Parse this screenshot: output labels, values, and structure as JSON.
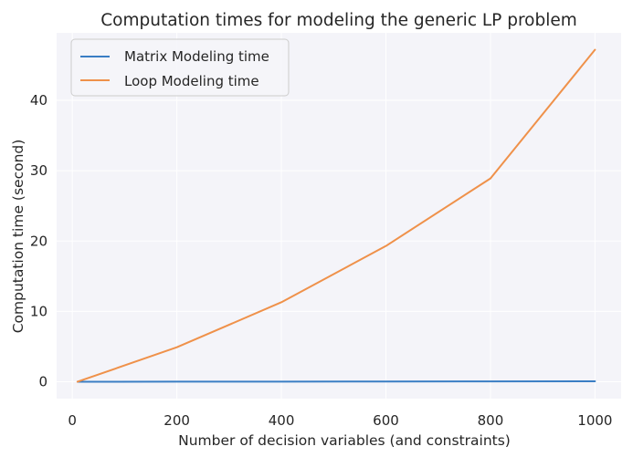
{
  "chart_data": {
    "type": "line",
    "title": "Computation times for modeling the generic LP problem",
    "xlabel": "Number of decision variables (and constraints)",
    "ylabel": "Computation time (second)",
    "xlim": [
      -30,
      1050
    ],
    "ylim": [
      -2.4,
      49.6
    ],
    "x_ticks": [
      0,
      200,
      400,
      600,
      800,
      1000
    ],
    "y_ticks": [
      0,
      10,
      20,
      30,
      40
    ],
    "grid": true,
    "legend_position": "top-left",
    "background": "#f4f4f9",
    "x": [
      10,
      200,
      400,
      600,
      800,
      1000
    ],
    "series": [
      {
        "name": "Matrix Modeling time",
        "color": "#3a7ec4",
        "values": [
          0.0,
          0.01,
          0.02,
          0.03,
          0.05,
          0.07
        ]
      },
      {
        "name": "Loop Modeling time",
        "color": "#ef914a",
        "values": [
          0.0,
          4.9,
          11.3,
          19.3,
          28.9,
          47.2
        ]
      }
    ]
  }
}
